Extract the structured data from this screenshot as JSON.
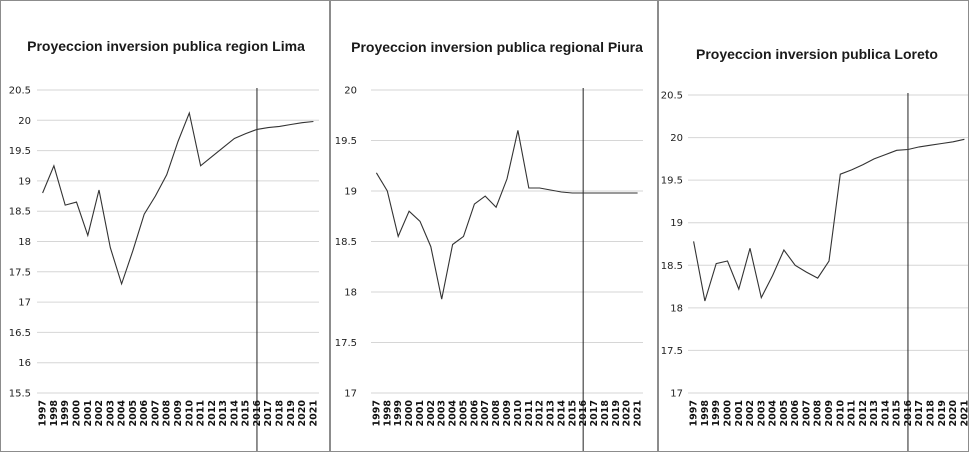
{
  "colors": {
    "line": "#333333",
    "grid": "#d6d6d6",
    "border": "#8c8c8c"
  },
  "chart_data": [
    {
      "type": "line",
      "title": "Proyeccion inversion publica region Lima",
      "xlabel": "",
      "ylabel": "",
      "categories": [
        "1997",
        "1998",
        "1999",
        "2000",
        "2001",
        "2002",
        "2003",
        "2004",
        "2005",
        "2006",
        "2007",
        "2008",
        "2009",
        "2010",
        "2011",
        "2012",
        "2013",
        "2014",
        "2015",
        "2016",
        "2017",
        "2018",
        "2019",
        "2020",
        "2021"
      ],
      "yticks": [
        "15.5",
        "16",
        "16.5",
        "17",
        "17.5",
        "18",
        "18.5",
        "19",
        "19.5",
        "20",
        "20.5"
      ],
      "ylim": [
        15.5,
        20.5
      ],
      "grid": true,
      "marker_year": "2016",
      "series": [
        {
          "values": [
            18.8,
            19.25,
            18.6,
            18.65,
            18.1,
            18.85,
            17.9,
            17.3,
            17.85,
            18.45,
            18.75,
            19.1,
            19.65,
            20.12,
            19.25,
            19.4,
            19.55,
            19.7,
            19.78,
            19.85,
            19.88,
            19.9,
            19.93,
            19.96,
            19.98
          ]
        }
      ]
    },
    {
      "type": "line",
      "title": "Proyeccion inversion publica regional Piura",
      "xlabel": "",
      "ylabel": "",
      "categories": [
        "1997",
        "1998",
        "1999",
        "2000",
        "2001",
        "2002",
        "2003",
        "2004",
        "2005",
        "2006",
        "2007",
        "2008",
        "2009",
        "2010",
        "2011",
        "2012",
        "2013",
        "2014",
        "2015",
        "2016",
        "2017",
        "2018",
        "2019",
        "2020",
        "2021"
      ],
      "yticks": [
        "17",
        "17.5",
        "18",
        "18.5",
        "19",
        "19.5",
        "20"
      ],
      "ylim": [
        17,
        20
      ],
      "grid": true,
      "marker_year": "2016",
      "series": [
        {
          "values": [
            19.18,
            19.0,
            18.55,
            18.8,
            18.7,
            18.45,
            17.93,
            18.47,
            18.55,
            18.87,
            18.95,
            18.84,
            19.12,
            19.6,
            19.03,
            19.03,
            19.01,
            18.99,
            18.98,
            18.98,
            18.98,
            18.98,
            18.98,
            18.98,
            18.98
          ]
        }
      ]
    },
    {
      "type": "line",
      "title": "Proyeccion inversion publica Loreto",
      "xlabel": "",
      "ylabel": "",
      "categories": [
        "1997",
        "1998",
        "1999",
        "2000",
        "2001",
        "2002",
        "2003",
        "2004",
        "2005",
        "2006",
        "2007",
        "2008",
        "2009",
        "2010",
        "2011",
        "2012",
        "2013",
        "2014",
        "2015",
        "2016",
        "2017",
        "2018",
        "2019",
        "2020",
        "2021"
      ],
      "yticks": [
        "17",
        "17.5",
        "18",
        "18.5",
        "19",
        "19.5",
        "20",
        "20.5"
      ],
      "ylim": [
        17,
        20.5
      ],
      "grid": true,
      "marker_year": "2016",
      "series": [
        {
          "values": [
            18.78,
            18.08,
            18.52,
            18.55,
            18.22,
            18.7,
            18.12,
            18.38,
            18.68,
            18.5,
            18.42,
            18.35,
            18.55,
            19.57,
            19.62,
            19.68,
            19.75,
            19.8,
            19.85,
            19.86,
            19.89,
            19.91,
            19.93,
            19.95,
            19.98
          ]
        }
      ]
    }
  ]
}
